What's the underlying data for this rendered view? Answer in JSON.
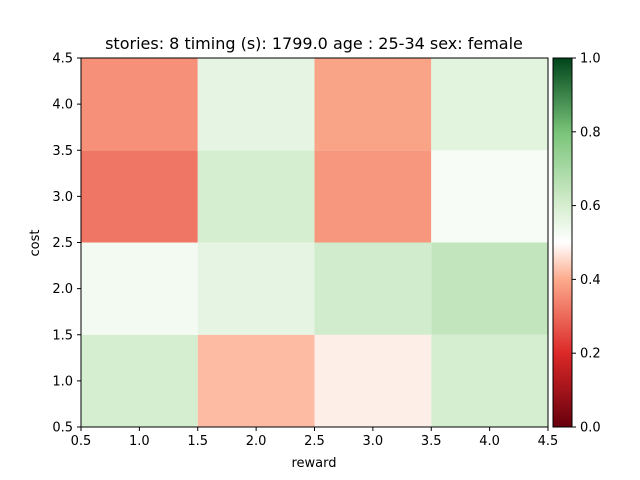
{
  "chart_data": {
    "type": "heatmap",
    "title": "stories: 8 timing (s): 1799.0 age : 25-34 sex: female",
    "xlabel": "reward",
    "ylabel": "cost",
    "x_centers": [
      1,
      2,
      3,
      4
    ],
    "y_centers": [
      1,
      2,
      3,
      4
    ],
    "xlim": [
      0.5,
      4.5
    ],
    "ylim": [
      0.5,
      4.5
    ],
    "x_ticks": [
      "0.5",
      "1.0",
      "1.5",
      "2.0",
      "2.5",
      "3.0",
      "3.5",
      "4.0",
      "4.5"
    ],
    "y_ticks": [
      "0.5",
      "1.0",
      "1.5",
      "2.0",
      "2.5",
      "3.0",
      "3.5",
      "4.0",
      "4.5"
    ],
    "values": [
      [
        0.6,
        0.42,
        0.48,
        0.6
      ],
      [
        0.53,
        0.56,
        0.61,
        0.64
      ],
      [
        0.32,
        0.6,
        0.37,
        0.52
      ],
      [
        0.36,
        0.56,
        0.39,
        0.57
      ]
    ],
    "colormap": "RdYlGn-like (red to white to green)",
    "colorbar": {
      "vmin": 0.0,
      "vmax": 1.0,
      "ticks": [
        "0.0",
        "0.2",
        "0.4",
        "0.6",
        "0.8",
        "1.0"
      ]
    },
    "grid": false
  }
}
